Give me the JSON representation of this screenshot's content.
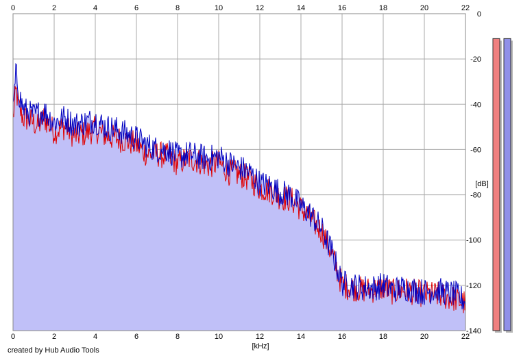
{
  "credit": "created by Hub Audio Tools",
  "colors": {
    "background": "#ffffff",
    "fill": "#c0c0f8",
    "grid": "#a8a8a8",
    "left_channel": "#e00000",
    "right_channel": "#0000c0",
    "left_meter": "#f08080",
    "right_meter": "#9090e8"
  },
  "chart_data": {
    "type": "area",
    "title": "",
    "xlabel": "[kHz]",
    "ylabel": "[dB]",
    "xlim": [
      0,
      22
    ],
    "ylim": [
      -140,
      0
    ],
    "x_ticks": [
      0,
      2,
      4,
      6,
      8,
      10,
      12,
      14,
      16,
      18,
      20,
      22
    ],
    "y_ticks": [
      0,
      -20,
      -40,
      -60,
      -80,
      -100,
      -120,
      -140
    ],
    "grid": true,
    "x_tick_positions": "top and bottom",
    "y_tick_position": "right",
    "series": [
      {
        "color": "#e00000",
        "x": [
          0,
          0.15,
          0.3,
          0.5,
          0.8,
          1.0,
          1.2,
          1.5,
          2.0,
          2.5,
          3.0,
          3.5,
          4.0,
          4.5,
          5.0,
          5.5,
          6.0,
          6.5,
          7.0,
          7.5,
          8.0,
          8.5,
          9.0,
          9.5,
          10.0,
          10.5,
          11.0,
          11.5,
          12.0,
          12.5,
          13.0,
          13.5,
          14.0,
          14.5,
          15.0,
          15.5,
          16.0,
          16.5,
          17.0,
          17.5,
          18.0,
          18.5,
          19.0,
          19.5,
          20.0,
          20.5,
          21.0,
          21.5,
          22.0
        ],
        "values": [
          -46,
          -34,
          -42,
          -46,
          -47,
          -48,
          -50,
          -46,
          -52,
          -50,
          -54,
          -53,
          -51,
          -54,
          -55,
          -56,
          -58,
          -62,
          -62,
          -63,
          -66,
          -64,
          -65,
          -67,
          -66,
          -70,
          -71,
          -73,
          -77,
          -78,
          -81,
          -82,
          -86,
          -91,
          -96,
          -106,
          -120,
          -121,
          -122,
          -122,
          -121,
          -123,
          -122,
          -123,
          -124,
          -124,
          -125,
          -126,
          -128
        ]
      },
      {
        "color": "#0000c0",
        "x": [
          0,
          0.15,
          0.3,
          0.5,
          0.8,
          1.0,
          1.2,
          1.5,
          2.0,
          2.5,
          3.0,
          3.5,
          4.0,
          4.5,
          5.0,
          5.5,
          6.0,
          6.5,
          7.0,
          7.5,
          8.0,
          8.5,
          9.0,
          9.5,
          10.0,
          10.5,
          11.0,
          11.5,
          12.0,
          12.5,
          13.0,
          13.5,
          14.0,
          14.5,
          15.0,
          15.5,
          16.0,
          16.5,
          17.0,
          17.5,
          18.0,
          18.5,
          19.0,
          19.5,
          20.0,
          20.5,
          21.0,
          21.5,
          22.0
        ],
        "values": [
          -42,
          -26,
          -36,
          -42,
          -44,
          -45,
          -44,
          -43,
          -48,
          -46,
          -49,
          -48,
          -47,
          -50,
          -51,
          -53,
          -55,
          -58,
          -60,
          -60,
          -63,
          -62,
          -63,
          -64,
          -63,
          -66,
          -68,
          -70,
          -75,
          -76,
          -79,
          -80,
          -85,
          -89,
          -95,
          -105,
          -119,
          -120,
          -121,
          -121,
          -120,
          -122,
          -121,
          -122,
          -123,
          -122,
          -123,
          -124,
          -127
        ]
      }
    ],
    "meters": [
      {
        "channel": "left",
        "level_db": -11
      },
      {
        "channel": "right",
        "level_db": -11
      }
    ]
  }
}
